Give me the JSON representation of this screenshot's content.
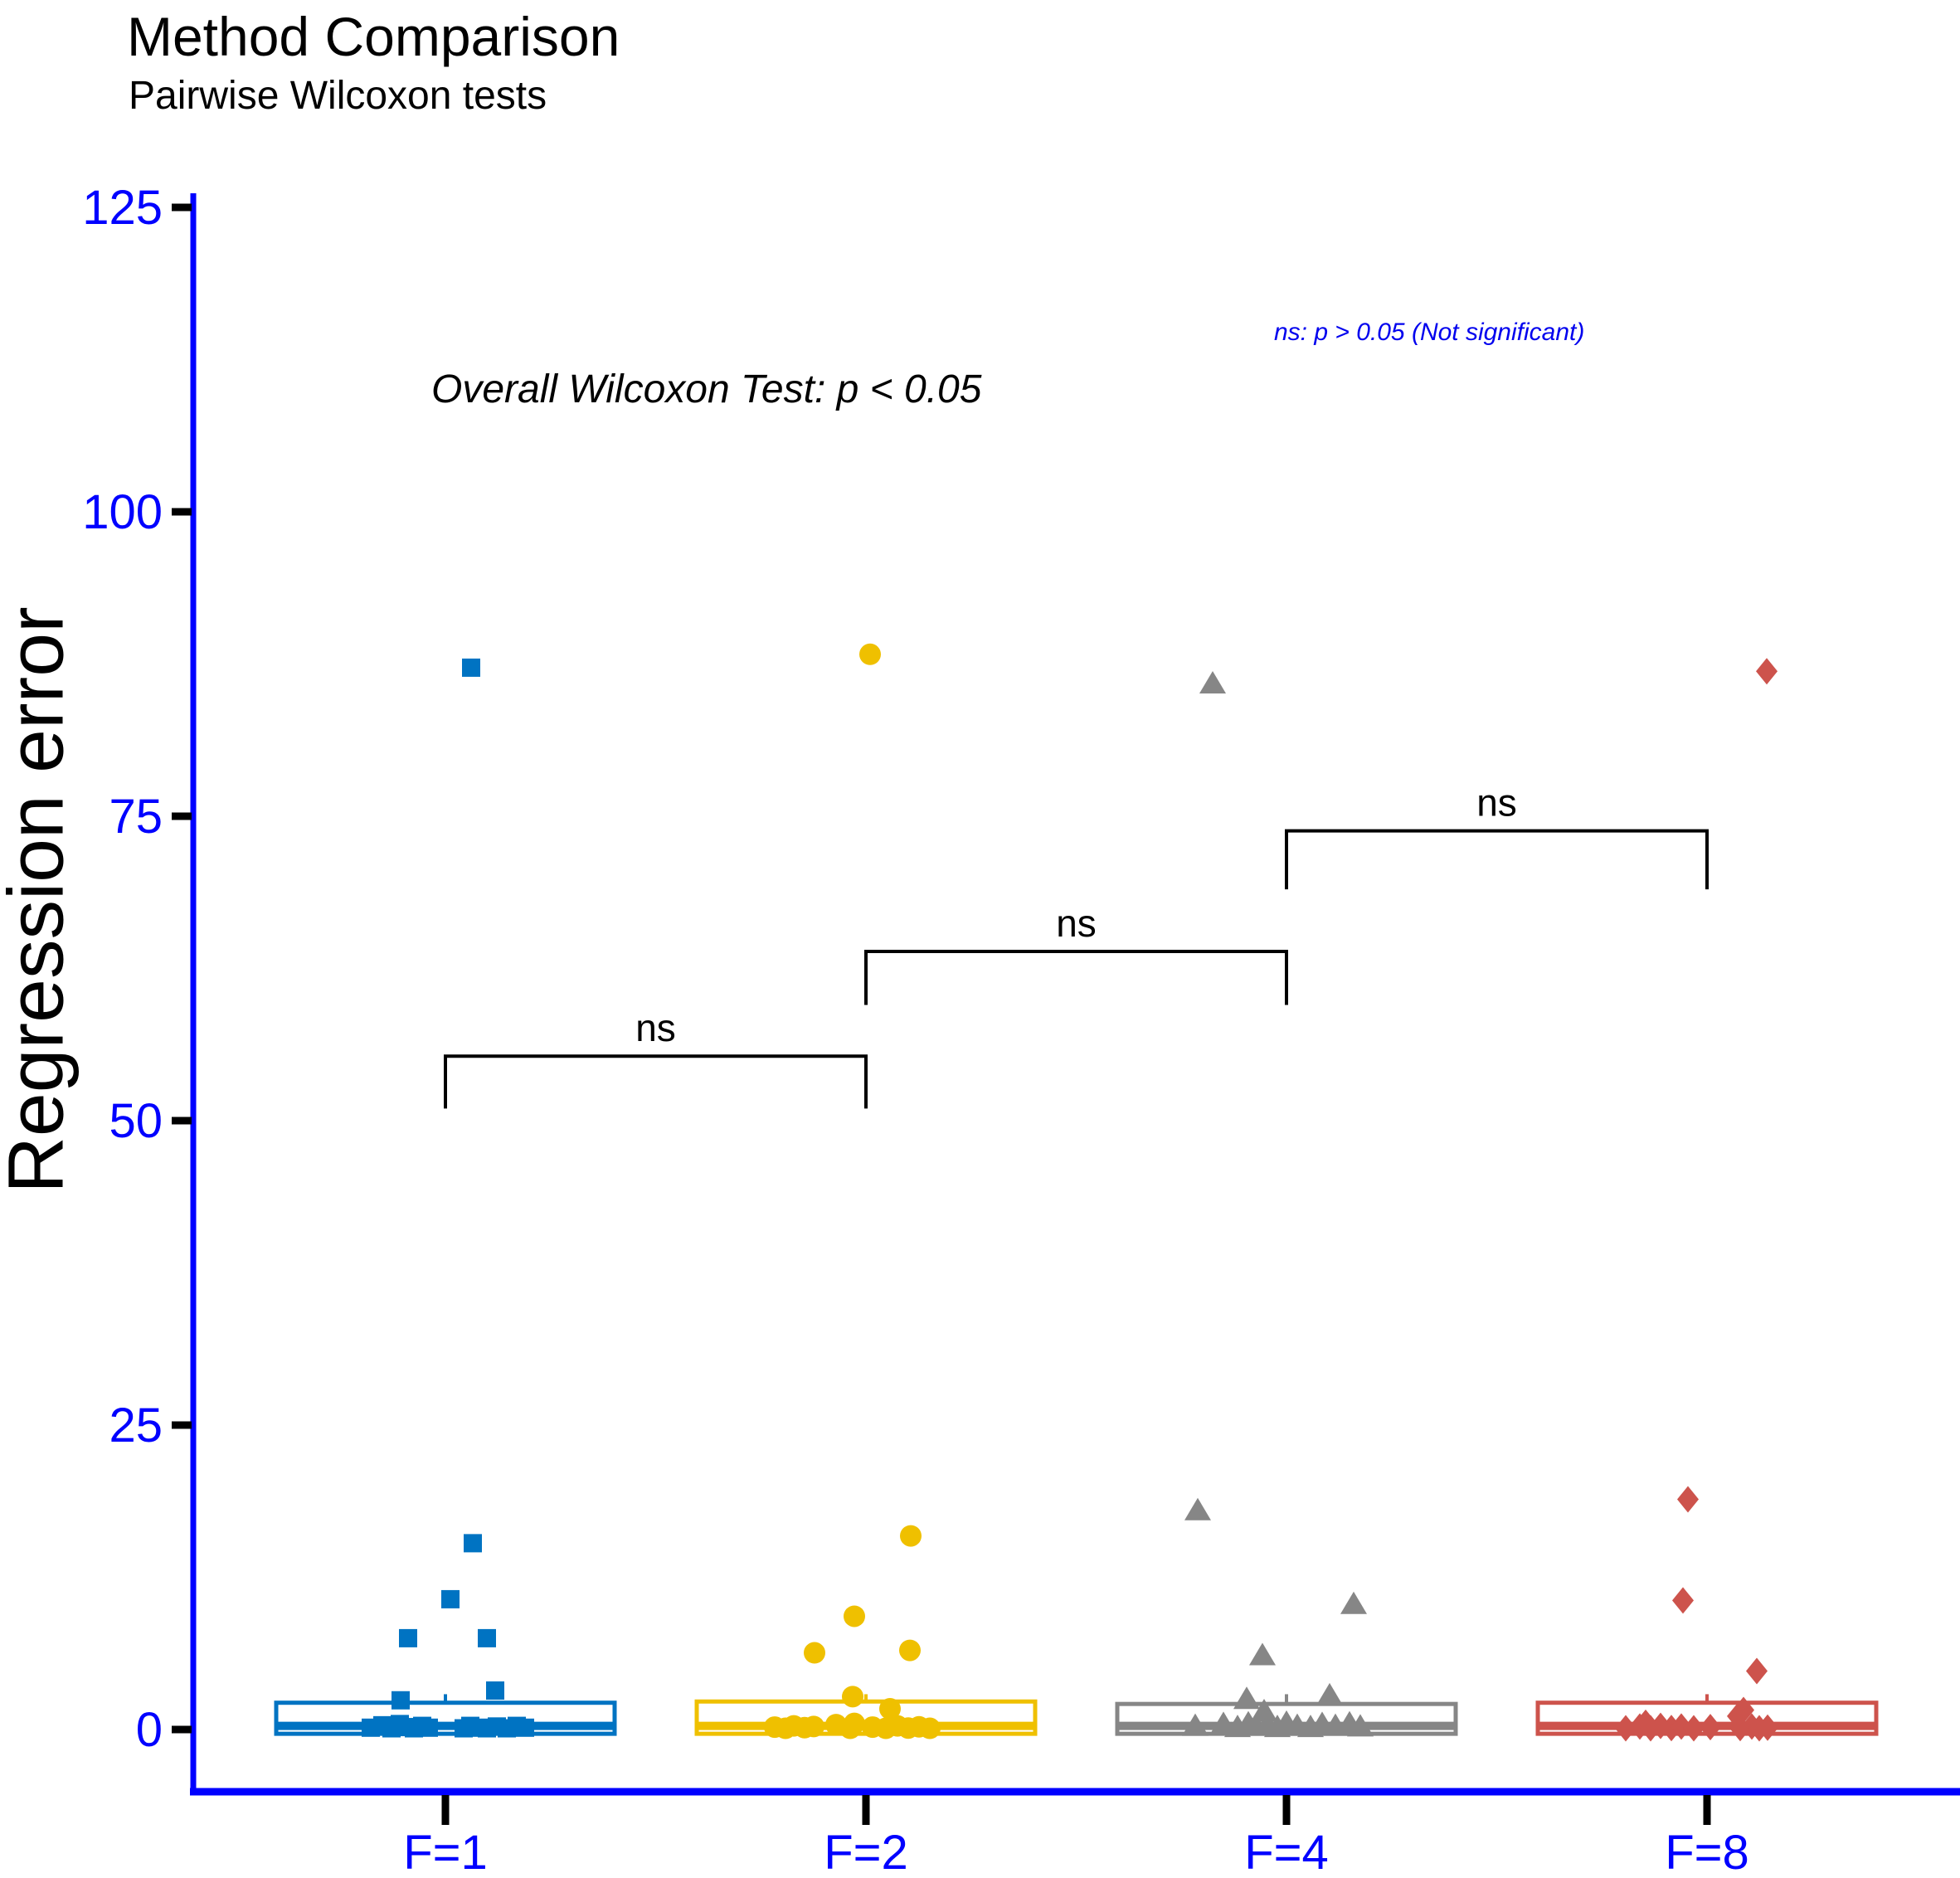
{
  "title": "Method Comparison",
  "subtitle": "Pairwise Wilcoxon tests",
  "annotations": {
    "overall_test": "Overall Wilcoxon Test: p < 0.05",
    "ns_legend": "ns: p > 0.05 (Not significant)"
  },
  "axes": {
    "y_label": "Regression error",
    "y_ticks": [
      0,
      25,
      50,
      75,
      100,
      125
    ],
    "x_categories": [
      "F=1",
      "F=2",
      "F=4",
      "F=8"
    ],
    "axis_color": "#0000FF",
    "tick_color": "#000000",
    "tick_label_color": "#0000FF"
  },
  "chart_data": {
    "type": "boxplot-jitter",
    "title": "Method Comparison",
    "subtitle": "Pairwise Wilcoxon tests",
    "ylabel": "Regression error",
    "ylim": [
      0,
      125
    ],
    "grid": false,
    "categories": [
      "F=1",
      "F=2",
      "F=4",
      "F=8"
    ],
    "groups": [
      {
        "label": "F=1",
        "color": "#0073C2",
        "marker": "square",
        "box": {
          "q1": -0.35,
          "median": 0.3,
          "q3": 2.2,
          "whisker_high": 2.9
        },
        "outlier": {
          "dx": 31,
          "value": 87.2
        },
        "points": [
          {
            "dx": 33,
            "value": 15.3
          },
          {
            "dx": 6,
            "value": 10.7
          },
          {
            "dx": -45,
            "value": 7.5
          },
          {
            "dx": 50,
            "value": 7.5
          },
          {
            "dx": 60,
            "value": 3.2
          },
          {
            "dx": -54,
            "value": 2.4
          },
          {
            "dx": -90,
            "value": 0.15
          },
          {
            "dx": -76,
            "value": 0.35
          },
          {
            "dx": -65,
            "value": 0.1
          },
          {
            "dx": -55,
            "value": 0.45
          },
          {
            "dx": -47,
            "value": 0.2
          },
          {
            "dx": -38,
            "value": 0.1
          },
          {
            "dx": -28,
            "value": 0.3
          },
          {
            "dx": -20,
            "value": 0.15
          },
          {
            "dx": 22,
            "value": 0.1
          },
          {
            "dx": 30,
            "value": 0.3
          },
          {
            "dx": 40,
            "value": 0.15
          },
          {
            "dx": 50,
            "value": 0.1
          },
          {
            "dx": 62,
            "value": 0.25
          },
          {
            "dx": 74,
            "value": 0.1
          },
          {
            "dx": 86,
            "value": 0.3
          },
          {
            "dx": 96,
            "value": 0.15
          }
        ]
      },
      {
        "label": "F=2",
        "color": "#EFC000",
        "marker": "circle",
        "box": {
          "q1": -0.35,
          "median": 0.3,
          "q3": 2.3,
          "whisker_high": 2.9
        },
        "outlier": {
          "dx": 5,
          "value": 88.3
        },
        "points": [
          {
            "dx": 54,
            "value": 15.9
          },
          {
            "dx": -14,
            "value": 9.3
          },
          {
            "dx": -62,
            "value": 6.3
          },
          {
            "dx": 53,
            "value": 6.5
          },
          {
            "dx": -16,
            "value": 2.7
          },
          {
            "dx": 29,
            "value": 1.7
          },
          {
            "dx": -110,
            "value": 0.2
          },
          {
            "dx": -97,
            "value": 0.1
          },
          {
            "dx": -87,
            "value": 0.3
          },
          {
            "dx": -74,
            "value": 0.15
          },
          {
            "dx": -63,
            "value": 0.25
          },
          {
            "dx": -36,
            "value": 0.4
          },
          {
            "dx": -19,
            "value": 0.1
          },
          {
            "dx": -14,
            "value": 0.5
          },
          {
            "dx": 8,
            "value": 0.2
          },
          {
            "dx": 24,
            "value": 0.1
          },
          {
            "dx": 38,
            "value": 0.3
          },
          {
            "dx": 51,
            "value": 0.12
          },
          {
            "dx": 64,
            "value": 0.22
          },
          {
            "dx": 77,
            "value": 0.1
          }
        ]
      },
      {
        "label": "F=4",
        "color": "#868686",
        "marker": "triangle",
        "box": {
          "q1": -0.35,
          "median": 0.3,
          "q3": 2.1,
          "whisker_high": 2.9
        },
        "outlier": {
          "dx": -89,
          "value": 85.9
        },
        "points": [
          {
            "dx": -107,
            "value": 18.0
          },
          {
            "dx": 81,
            "value": 10.3
          },
          {
            "dx": -29,
            "value": 6.1
          },
          {
            "dx": 52,
            "value": 2.8
          },
          {
            "dx": -48,
            "value": 2.5
          },
          {
            "dx": -27,
            "value": 1.5
          },
          {
            "dx": -110,
            "value": 0.3
          },
          {
            "dx": -76,
            "value": 0.45
          },
          {
            "dx": -59,
            "value": 0.2
          },
          {
            "dx": -46,
            "value": 0.5
          },
          {
            "dx": -36,
            "value": 0.3
          },
          {
            "dx": -23,
            "value": 0.45
          },
          {
            "dx": -11,
            "value": 0.2
          },
          {
            "dx": 0,
            "value": 0.55
          },
          {
            "dx": 13,
            "value": 0.3
          },
          {
            "dx": 29,
            "value": 0.2
          },
          {
            "dx": 43,
            "value": 0.45
          },
          {
            "dx": 59,
            "value": 0.3
          },
          {
            "dx": 76,
            "value": 0.5
          },
          {
            "dx": 89,
            "value": 0.25
          }
        ]
      },
      {
        "label": "F=8",
        "color": "#CD534C",
        "marker": "diamond",
        "box": {
          "q1": -0.35,
          "median": 0.3,
          "q3": 2.2,
          "whisker_high": 2.9
        },
        "outlier": {
          "dx": 72,
          "value": 86.9
        },
        "points": [
          {
            "dx": -23,
            "value": 18.9
          },
          {
            "dx": -29,
            "value": 10.6
          },
          {
            "dx": 60,
            "value": 4.8
          },
          {
            "dx": 44,
            "value": 1.6
          },
          {
            "dx": 37,
            "value": 1.1
          },
          {
            "dx": -74,
            "value": 0.55
          },
          {
            "dx": -98,
            "value": 0.1
          },
          {
            "dx": -81,
            "value": 0.25
          },
          {
            "dx": -68,
            "value": 0.1
          },
          {
            "dx": -56,
            "value": 0.3
          },
          {
            "dx": -43,
            "value": 0.12
          },
          {
            "dx": -31,
            "value": 0.25
          },
          {
            "dx": -16,
            "value": 0.1
          },
          {
            "dx": 4,
            "value": 0.2
          },
          {
            "dx": 40,
            "value": 0.12
          },
          {
            "dx": 54,
            "value": 0.25
          },
          {
            "dx": 63,
            "value": 0.1
          },
          {
            "dx": 73,
            "value": 0.15
          }
        ]
      }
    ],
    "comparisons": [
      {
        "label": "ns",
        "from": 0,
        "to": 1,
        "bar_value": 55.3,
        "tip_value": 51.0
      },
      {
        "label": "ns",
        "from": 1,
        "to": 2,
        "bar_value": 63.9,
        "tip_value": 59.5
      },
      {
        "label": "ns",
        "from": 2,
        "to": 3,
        "bar_value": 73.8,
        "tip_value": 69.0
      }
    ],
    "legend_position": "none"
  }
}
